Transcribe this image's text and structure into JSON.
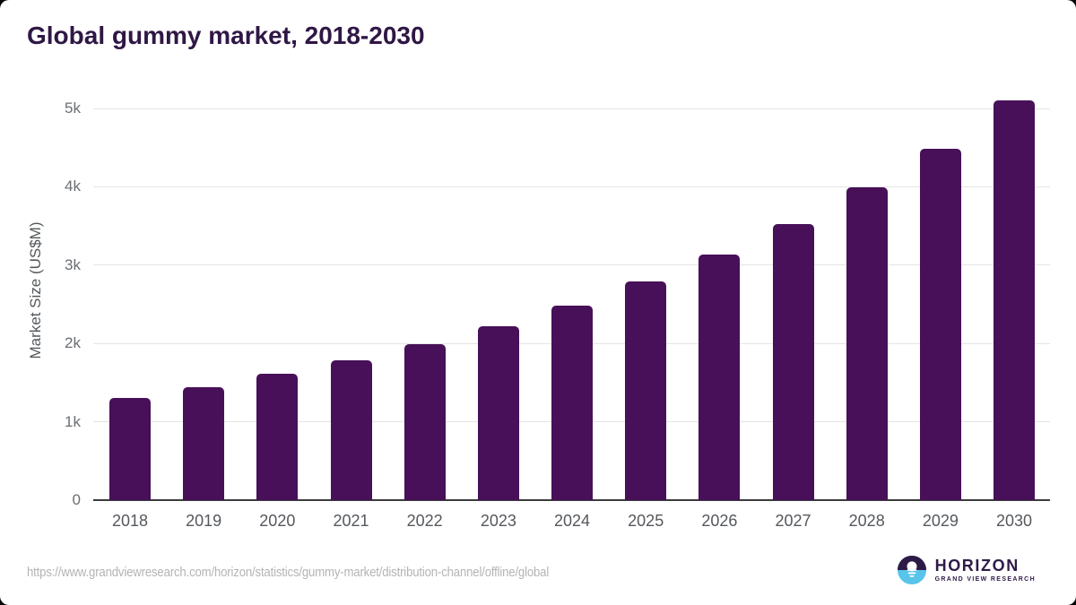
{
  "chart": {
    "title": "Global gummy market, 2018-2030",
    "ylabel": "Market Size (US$M)"
  },
  "chart_data": {
    "type": "bar",
    "title": "Global gummy market, 2018-2030",
    "xlabel": "",
    "ylabel": "Market Size (US$M)",
    "unit": "US$M",
    "categories": [
      "2018",
      "2019",
      "2020",
      "2021",
      "2022",
      "2023",
      "2024",
      "2025",
      "2026",
      "2027",
      "2028",
      "2029",
      "2030"
    ],
    "values": [
      1300,
      1440,
      1610,
      1780,
      1990,
      2220,
      2480,
      2790,
      3140,
      3520,
      3990,
      4490,
      5100
    ],
    "ylim": [
      0,
      5200
    ],
    "yticks": [
      {
        "label": "0",
        "value": 0
      },
      {
        "label": "1k",
        "value": 1000
      },
      {
        "label": "2k",
        "value": 2000
      },
      {
        "label": "3k",
        "value": 3000
      },
      {
        "label": "4k",
        "value": 4000
      },
      {
        "label": "5k",
        "value": 5000
      }
    ],
    "grid": "horizontal",
    "legend": "none",
    "bar_color": "#471058",
    "title_color": "#2f1745",
    "axis_label_color": "#55585c",
    "gridline_color": "#e4e4e5"
  },
  "footer": {
    "source_url": "https://www.grandviewresearch.com/horizon/statistics/gummy-market/distribution-channel/offline/global",
    "logo": {
      "name": "HORIZON",
      "subtitle": "GRAND VIEW RESEARCH",
      "purple": "#2e1a47",
      "blue": "#58c4e9"
    }
  }
}
